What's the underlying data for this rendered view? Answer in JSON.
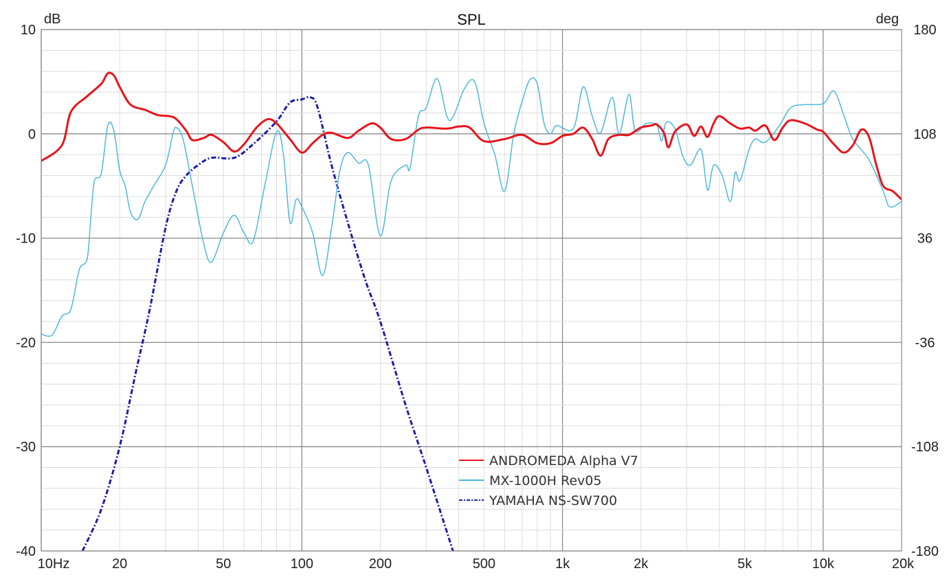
{
  "chart_data": {
    "type": "line",
    "title": "SPL",
    "ylabel": "dB",
    "y2label": "deg",
    "xscale": "log",
    "xlim": [
      10,
      20000
    ],
    "ylim": [
      -40,
      10
    ],
    "y2lim": [
      -180,
      180
    ],
    "grid": true,
    "legend_position": "bottom-center",
    "x_ticks": [
      {
        "value": 10,
        "label": "10Hz"
      },
      {
        "value": 20,
        "label": "20"
      },
      {
        "value": 50,
        "label": "50"
      },
      {
        "value": 100,
        "label": "100"
      },
      {
        "value": 200,
        "label": "200"
      },
      {
        "value": 500,
        "label": "500"
      },
      {
        "value": 1000,
        "label": "1k"
      },
      {
        "value": 2000,
        "label": "2k"
      },
      {
        "value": 5000,
        "label": "5k"
      },
      {
        "value": 10000,
        "label": "10k"
      },
      {
        "value": 20000,
        "label": "20k"
      }
    ],
    "y_ticks": [
      {
        "value": 10,
        "label": "10"
      },
      {
        "value": 0,
        "label": "0"
      },
      {
        "value": -10,
        "label": "-10"
      },
      {
        "value": -20,
        "label": "-20"
      },
      {
        "value": -30,
        "label": "-30"
      },
      {
        "value": -40,
        "label": "-40"
      }
    ],
    "y2_ticks": [
      {
        "value": 180,
        "label": "180"
      },
      {
        "value": 108,
        "label": "108"
      },
      {
        "value": 36,
        "label": "36"
      },
      {
        "value": -36,
        "label": "-36"
      },
      {
        "value": -108,
        "label": "-108"
      },
      {
        "value": -180,
        "label": "-180"
      }
    ],
    "series": [
      {
        "name": "ANDROMEDA Alpha V7",
        "color": "#e8141c",
        "style": "solid",
        "width": 3,
        "points": [
          [
            10,
            -2.6
          ],
          [
            12,
            -1.1
          ],
          [
            13,
            2.1
          ],
          [
            15,
            3.6
          ],
          [
            17,
            4.8
          ],
          [
            18,
            5.8
          ],
          [
            19,
            5.6
          ],
          [
            20,
            4.5
          ],
          [
            22,
            2.8
          ],
          [
            25,
            2.3
          ],
          [
            28,
            1.8
          ],
          [
            31,
            1.7
          ],
          [
            33,
            1.4
          ],
          [
            36,
            0.3
          ],
          [
            38,
            -0.6
          ],
          [
            42,
            -0.4
          ],
          [
            45,
            -0.1
          ],
          [
            50,
            -0.8
          ],
          [
            55,
            -1.7
          ],
          [
            60,
            -1.0
          ],
          [
            67,
            0.6
          ],
          [
            74,
            1.4
          ],
          [
            80,
            1.0
          ],
          [
            90,
            -0.5
          ],
          [
            100,
            -1.8
          ],
          [
            110,
            -0.9
          ],
          [
            120,
            -0.1
          ],
          [
            130,
            0.1
          ],
          [
            150,
            -0.4
          ],
          [
            165,
            0.3
          ],
          [
            185,
            1.0
          ],
          [
            200,
            0.6
          ],
          [
            220,
            -0.5
          ],
          [
            250,
            -0.5
          ],
          [
            280,
            0.4
          ],
          [
            300,
            0.6
          ],
          [
            360,
            0.5
          ],
          [
            400,
            0.7
          ],
          [
            440,
            0.6
          ],
          [
            500,
            -0.7
          ],
          [
            600,
            -0.5
          ],
          [
            700,
            -0.1
          ],
          [
            800,
            -0.9
          ],
          [
            900,
            -0.9
          ],
          [
            1000,
            -0.2
          ],
          [
            1100,
            0
          ],
          [
            1200,
            0.6
          ],
          [
            1300,
            -0.5
          ],
          [
            1400,
            -2.1
          ],
          [
            1500,
            -0.5
          ],
          [
            1650,
            -0.1
          ],
          [
            1800,
            -0.1
          ],
          [
            2000,
            0.6
          ],
          [
            2200,
            0.8
          ],
          [
            2300,
            0.9
          ],
          [
            2450,
            0.1
          ],
          [
            2550,
            -1.3
          ],
          [
            2700,
            0.2
          ],
          [
            3000,
            0.9
          ],
          [
            3200,
            -0.2
          ],
          [
            3400,
            0.7
          ],
          [
            3600,
            -0.3
          ],
          [
            3800,
            1.0
          ],
          [
            4000,
            1.7
          ],
          [
            4400,
            1.0
          ],
          [
            4800,
            0.5
          ],
          [
            5200,
            0.6
          ],
          [
            5500,
            0.3
          ],
          [
            6000,
            0.8
          ],
          [
            6500,
            -0.6
          ],
          [
            7000,
            0.6
          ],
          [
            7500,
            1.3
          ],
          [
            8500,
            1.0
          ],
          [
            9500,
            0.4
          ],
          [
            10000,
            0.2
          ],
          [
            11000,
            -1.0
          ],
          [
            12000,
            -1.8
          ],
          [
            13000,
            -1.1
          ],
          [
            14000,
            0.4
          ],
          [
            15000,
            -0.3
          ],
          [
            16000,
            -3.0
          ],
          [
            17000,
            -5.0
          ],
          [
            18500,
            -5.5
          ],
          [
            20000,
            -6.3
          ]
        ]
      },
      {
        "name": "MX-1000H Rev05",
        "color": "#4cb8e0",
        "style": "solid",
        "width": 1.5,
        "points": [
          [
            10,
            -19.2
          ],
          [
            11,
            -19.3
          ],
          [
            12,
            -17.5
          ],
          [
            13,
            -16.8
          ],
          [
            14,
            -13.0
          ],
          [
            15,
            -12.0
          ],
          [
            15.5,
            -8
          ],
          [
            16,
            -4.5
          ],
          [
            17,
            -3.8
          ],
          [
            18,
            0.8
          ],
          [
            19,
            0.3
          ],
          [
            20,
            -3.5
          ],
          [
            21,
            -5
          ],
          [
            22,
            -7.5
          ],
          [
            23.5,
            -8.2
          ],
          [
            25,
            -6.5
          ],
          [
            27,
            -5
          ],
          [
            30,
            -3
          ],
          [
            32,
            0.0
          ],
          [
            33,
            0.6
          ],
          [
            35,
            -0.5
          ],
          [
            38,
            -5
          ],
          [
            42,
            -10.5
          ],
          [
            45,
            -12.3
          ],
          [
            50,
            -9.5
          ],
          [
            55,
            -7.8
          ],
          [
            60,
            -9.5
          ],
          [
            65,
            -10.3
          ],
          [
            72,
            -5
          ],
          [
            80,
            0.2
          ],
          [
            85,
            -2
          ],
          [
            90,
            -8.5
          ],
          [
            95,
            -6.3
          ],
          [
            100,
            -7
          ],
          [
            110,
            -9.5
          ],
          [
            120,
            -13.6
          ],
          [
            130,
            -9
          ],
          [
            140,
            -3.5
          ],
          [
            150,
            -1.8
          ],
          [
            165,
            -2.8
          ],
          [
            180,
            -3.0
          ],
          [
            200,
            -9.8
          ],
          [
            220,
            -4.5
          ],
          [
            250,
            -3.0
          ],
          [
            260,
            -3.3
          ],
          [
            280,
            1.7
          ],
          [
            300,
            2.5
          ],
          [
            330,
            5.3
          ],
          [
            360,
            1.7
          ],
          [
            380,
            1.6
          ],
          [
            420,
            4.3
          ],
          [
            460,
            5.0
          ],
          [
            500,
            1.0
          ],
          [
            550,
            -2
          ],
          [
            600,
            -5.5
          ],
          [
            650,
            0
          ],
          [
            700,
            3.1
          ],
          [
            750,
            5.2
          ],
          [
            800,
            4.8
          ],
          [
            850,
            1.0
          ],
          [
            900,
            0.0
          ],
          [
            950,
            0.8
          ],
          [
            1100,
            0.5
          ],
          [
            1200,
            4.5
          ],
          [
            1300,
            1.7
          ],
          [
            1400,
            0.1
          ],
          [
            1550,
            3.5
          ],
          [
            1650,
            0.0
          ],
          [
            1800,
            3.8
          ],
          [
            1900,
            0.3
          ],
          [
            2100,
            1.0
          ],
          [
            2300,
            0.8
          ],
          [
            2400,
            -0.7
          ],
          [
            2500,
            1.1
          ],
          [
            2700,
            0.5
          ],
          [
            2900,
            -2.2
          ],
          [
            3100,
            -3
          ],
          [
            3400,
            -1.5
          ],
          [
            3600,
            -5.4
          ],
          [
            3800,
            -3.0
          ],
          [
            4100,
            -4
          ],
          [
            4400,
            -6.5
          ],
          [
            4600,
            -3.7
          ],
          [
            4800,
            -4.5
          ],
          [
            5200,
            -1.5
          ],
          [
            5500,
            -0.5
          ],
          [
            6000,
            -0.8
          ],
          [
            6800,
            0.8
          ],
          [
            7500,
            2.5
          ],
          [
            8500,
            2.8
          ],
          [
            10000,
            2.9
          ],
          [
            11000,
            4.1
          ],
          [
            12000,
            1.8
          ],
          [
            13000,
            -0.5
          ],
          [
            15000,
            -2.5
          ],
          [
            17000,
            -5.5
          ],
          [
            18000,
            -7.0
          ],
          [
            20000,
            -6.5
          ]
        ]
      },
      {
        "name": "YAMAHA NS-SW700",
        "color": "#1c1ca8",
        "style": "dash-dot",
        "width": 3,
        "points": [
          [
            14.4,
            -40
          ],
          [
            17,
            -36
          ],
          [
            20,
            -30
          ],
          [
            23,
            -23
          ],
          [
            26,
            -17
          ],
          [
            30,
            -9
          ],
          [
            33,
            -5.5
          ],
          [
            36,
            -4
          ],
          [
            40,
            -3
          ],
          [
            45,
            -2.3
          ],
          [
            55,
            -2.3
          ],
          [
            65,
            -1.0
          ],
          [
            80,
            1.2
          ],
          [
            90,
            3.0
          ],
          [
            100,
            3.3
          ],
          [
            108,
            3.5
          ],
          [
            115,
            2.5
          ],
          [
            130,
            -3
          ],
          [
            150,
            -8.5
          ],
          [
            175,
            -14
          ],
          [
            200,
            -18
          ],
          [
            250,
            -26
          ],
          [
            300,
            -32
          ],
          [
            380,
            -40
          ]
        ]
      }
    ]
  }
}
